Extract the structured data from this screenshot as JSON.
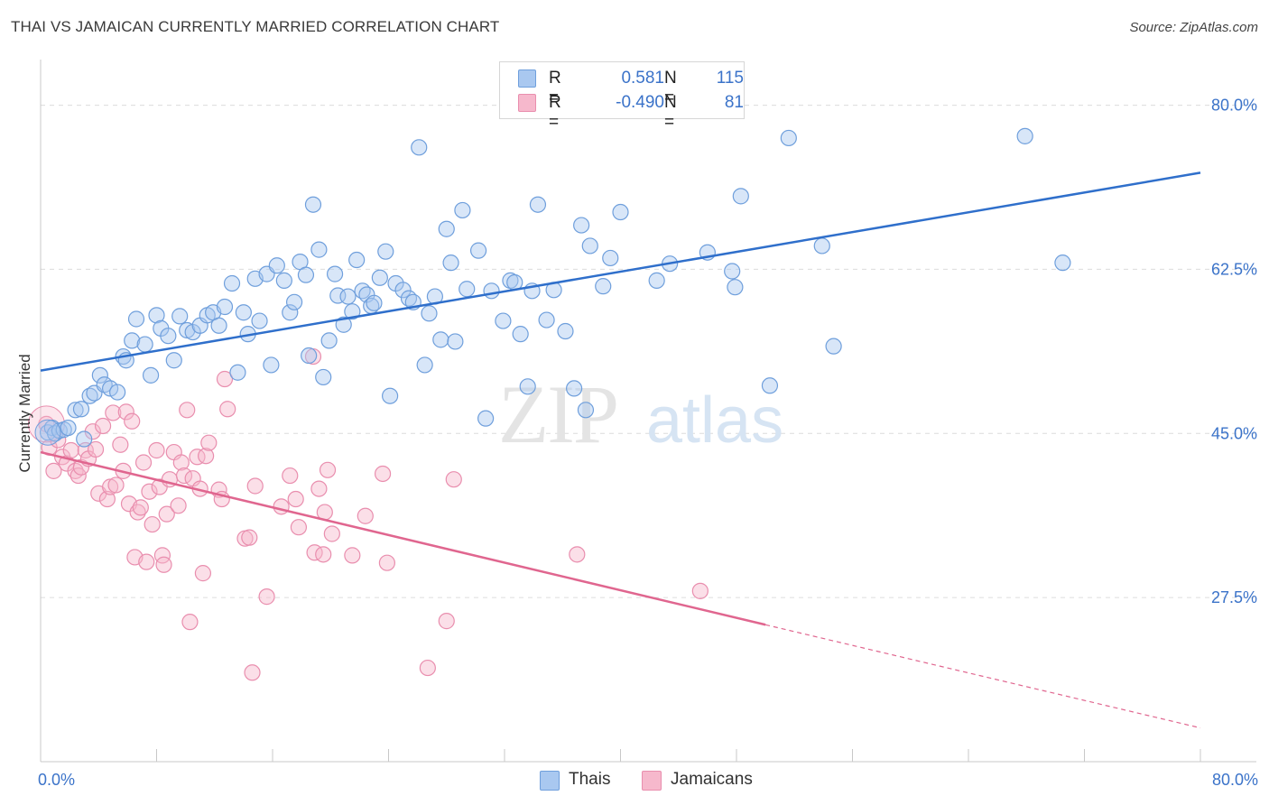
{
  "header": {
    "title": "THAI VS JAMAICAN CURRENTLY MARRIED CORRELATION CHART",
    "source": "Source: ZipAtlas.com"
  },
  "legend": {
    "rows": [
      {
        "r_label": "R =",
        "r_value": "0.581",
        "n_label": "N =",
        "n_value": "115"
      },
      {
        "r_label": "R =",
        "r_value": "-0.490",
        "n_label": "N =",
        "n_value": "81"
      }
    ]
  },
  "bottom_legend": {
    "thai_label": "Thais",
    "jamaican_label": "Jamaicans"
  },
  "watermark": {
    "zip": "ZIP",
    "atlas": "atlas"
  },
  "colors": {
    "thai_fill": "#a9c8f0",
    "thai_stroke": "#6f9fdc",
    "thai_line": "#2f6fcb",
    "jam_fill": "#f6b8cc",
    "jam_stroke": "#e98eae",
    "jam_line": "#e0668f",
    "axis_text": "#3b73c9",
    "grid": "#dcdcdc"
  },
  "chart_data": {
    "type": "scatter",
    "title": "THAI VS JAMAICAN CURRENTLY MARRIED CORRELATION CHART",
    "xlabel": "",
    "ylabel": "Currently Married",
    "xlim": [
      0,
      80
    ],
    "ylim": [
      10,
      84
    ],
    "x_tick_labels": [
      "0.0%",
      "80.0%"
    ],
    "y_ticks": [
      27.5,
      45.0,
      62.5,
      80.0
    ],
    "y_tick_labels": [
      "27.5%",
      "45.0%",
      "62.5%",
      "80.0%"
    ],
    "grid": true,
    "legend_position": "top-center",
    "series": [
      {
        "name": "Thais",
        "r": 0.581,
        "n": 115,
        "trend": {
          "x": [
            0,
            80
          ],
          "y": [
            51.7,
            72.8
          ]
        },
        "points": [
          [
            0.5,
            45.1
          ],
          [
            0.8,
            45.6
          ],
          [
            1.0,
            45.0
          ],
          [
            1.3,
            45.3
          ],
          [
            1.6,
            45.4
          ],
          [
            1.9,
            45.6
          ],
          [
            2.4,
            47.5
          ],
          [
            2.8,
            47.6
          ],
          [
            3.0,
            44.4
          ],
          [
            3.4,
            49.0
          ],
          [
            3.7,
            49.3
          ],
          [
            4.1,
            51.2
          ],
          [
            4.4,
            50.2
          ],
          [
            4.8,
            49.8
          ],
          [
            5.3,
            49.4
          ],
          [
            5.7,
            53.2
          ],
          [
            5.9,
            52.8
          ],
          [
            6.3,
            54.9
          ],
          [
            6.6,
            57.2
          ],
          [
            7.2,
            54.5
          ],
          [
            7.6,
            51.2
          ],
          [
            8.0,
            57.6
          ],
          [
            8.3,
            56.2
          ],
          [
            8.8,
            55.4
          ],
          [
            9.2,
            52.8
          ],
          [
            9.6,
            57.5
          ],
          [
            10.1,
            56.0
          ],
          [
            10.5,
            55.8
          ],
          [
            11.0,
            56.5
          ],
          [
            11.5,
            57.6
          ],
          [
            11.9,
            57.9
          ],
          [
            12.3,
            56.5
          ],
          [
            12.7,
            58.5
          ],
          [
            13.2,
            61.0
          ],
          [
            13.6,
            51.5
          ],
          [
            14.0,
            57.9
          ],
          [
            14.3,
            55.6
          ],
          [
            14.8,
            61.5
          ],
          [
            15.1,
            57.0
          ],
          [
            15.6,
            62.0
          ],
          [
            15.9,
            52.3
          ],
          [
            16.3,
            62.9
          ],
          [
            16.8,
            61.3
          ],
          [
            17.2,
            57.9
          ],
          [
            17.5,
            59.0
          ],
          [
            17.9,
            63.3
          ],
          [
            18.3,
            61.9
          ],
          [
            18.5,
            53.3
          ],
          [
            18.8,
            69.4
          ],
          [
            19.2,
            64.6
          ],
          [
            19.5,
            51.0
          ],
          [
            19.9,
            54.9
          ],
          [
            20.3,
            62.0
          ],
          [
            20.5,
            59.7
          ],
          [
            20.9,
            56.6
          ],
          [
            21.2,
            59.6
          ],
          [
            21.5,
            58.0
          ],
          [
            21.8,
            63.5
          ],
          [
            22.2,
            60.2
          ],
          [
            22.5,
            59.8
          ],
          [
            22.8,
            58.6
          ],
          [
            23.0,
            58.9
          ],
          [
            23.4,
            61.6
          ],
          [
            23.8,
            64.4
          ],
          [
            24.1,
            49.0
          ],
          [
            24.5,
            61.0
          ],
          [
            25.0,
            60.3
          ],
          [
            25.4,
            59.4
          ],
          [
            25.7,
            59.0
          ],
          [
            26.1,
            75.5
          ],
          [
            26.5,
            52.3
          ],
          [
            26.8,
            57.8
          ],
          [
            27.2,
            59.6
          ],
          [
            27.6,
            55.0
          ],
          [
            28.0,
            66.8
          ],
          [
            28.3,
            63.2
          ],
          [
            28.6,
            54.8
          ],
          [
            29.1,
            68.8
          ],
          [
            29.4,
            60.4
          ],
          [
            30.2,
            64.5
          ],
          [
            30.7,
            46.6
          ],
          [
            31.1,
            60.2
          ],
          [
            31.9,
            57.0
          ],
          [
            32.4,
            61.3
          ],
          [
            32.7,
            61.1
          ],
          [
            33.1,
            55.6
          ],
          [
            33.6,
            50.0
          ],
          [
            33.9,
            60.2
          ],
          [
            34.3,
            69.4
          ],
          [
            34.9,
            57.1
          ],
          [
            35.4,
            60.3
          ],
          [
            36.2,
            55.9
          ],
          [
            36.8,
            49.8
          ],
          [
            37.3,
            67.2
          ],
          [
            37.6,
            47.5
          ],
          [
            37.9,
            65.0
          ],
          [
            38.8,
            60.7
          ],
          [
            39.3,
            63.7
          ],
          [
            40.0,
            68.6
          ],
          [
            42.5,
            61.3
          ],
          [
            43.4,
            63.1
          ],
          [
            46.0,
            64.3
          ],
          [
            47.7,
            62.3
          ],
          [
            47.9,
            60.6
          ],
          [
            48.3,
            70.3
          ],
          [
            50.3,
            50.1
          ],
          [
            51.6,
            76.5
          ],
          [
            53.9,
            65.0
          ],
          [
            54.7,
            54.3
          ],
          [
            67.9,
            76.7
          ],
          [
            70.5,
            63.2
          ]
        ]
      },
      {
        "name": "Jamaicans",
        "r": -0.49,
        "n": 81,
        "trend": {
          "x": [
            0,
            50
          ],
          "y": [
            43.0,
            24.6
          ]
        },
        "trend_dashed": {
          "x": [
            50,
            80
          ],
          "y": [
            24.6,
            13.6
          ]
        },
        "points": [
          [
            0.4,
            46.0
          ],
          [
            0.6,
            43.5
          ],
          [
            0.9,
            41.0
          ],
          [
            1.2,
            44.3
          ],
          [
            1.5,
            42.5
          ],
          [
            1.8,
            41.8
          ],
          [
            2.1,
            43.2
          ],
          [
            2.4,
            41.0
          ],
          [
            2.6,
            40.5
          ],
          [
            2.8,
            41.4
          ],
          [
            3.1,
            43.2
          ],
          [
            3.3,
            42.3
          ],
          [
            3.6,
            45.2
          ],
          [
            3.8,
            43.3
          ],
          [
            4.0,
            38.6
          ],
          [
            4.3,
            45.8
          ],
          [
            4.6,
            38.0
          ],
          [
            4.8,
            39.3
          ],
          [
            5.0,
            47.2
          ],
          [
            5.2,
            39.5
          ],
          [
            5.5,
            43.8
          ],
          [
            5.7,
            41.0
          ],
          [
            5.9,
            47.3
          ],
          [
            6.1,
            37.5
          ],
          [
            6.3,
            46.3
          ],
          [
            6.5,
            31.8
          ],
          [
            6.7,
            36.6
          ],
          [
            6.9,
            37.1
          ],
          [
            7.1,
            41.9
          ],
          [
            7.3,
            31.3
          ],
          [
            7.5,
            38.8
          ],
          [
            7.7,
            35.3
          ],
          [
            8.0,
            43.2
          ],
          [
            8.2,
            39.3
          ],
          [
            8.4,
            32.0
          ],
          [
            8.5,
            31.0
          ],
          [
            8.7,
            36.4
          ],
          [
            8.9,
            40.1
          ],
          [
            9.2,
            43.0
          ],
          [
            9.5,
            37.3
          ],
          [
            9.7,
            41.9
          ],
          [
            9.9,
            40.5
          ],
          [
            10.1,
            47.5
          ],
          [
            10.3,
            24.9
          ],
          [
            10.5,
            40.2
          ],
          [
            10.8,
            42.5
          ],
          [
            11.0,
            39.1
          ],
          [
            11.2,
            30.1
          ],
          [
            11.4,
            42.6
          ],
          [
            11.6,
            44.0
          ],
          [
            12.3,
            39.0
          ],
          [
            12.5,
            38.0
          ],
          [
            12.7,
            50.8
          ],
          [
            12.9,
            47.6
          ],
          [
            14.1,
            33.8
          ],
          [
            14.4,
            33.9
          ],
          [
            14.6,
            19.5
          ],
          [
            14.8,
            39.4
          ],
          [
            15.6,
            27.6
          ],
          [
            16.6,
            37.2
          ],
          [
            17.2,
            40.5
          ],
          [
            17.6,
            38.0
          ],
          [
            17.8,
            35.0
          ],
          [
            18.8,
            53.2
          ],
          [
            18.9,
            32.3
          ],
          [
            19.2,
            39.1
          ],
          [
            19.5,
            32.1
          ],
          [
            19.6,
            36.6
          ],
          [
            19.8,
            41.1
          ],
          [
            20.1,
            34.3
          ],
          [
            21.5,
            32.0
          ],
          [
            22.4,
            36.2
          ],
          [
            23.6,
            40.7
          ],
          [
            23.9,
            31.2
          ],
          [
            26.7,
            20.0
          ],
          [
            28.0,
            25.0
          ],
          [
            28.5,
            40.1
          ],
          [
            37.0,
            32.1
          ],
          [
            45.5,
            28.2
          ]
        ]
      }
    ]
  }
}
